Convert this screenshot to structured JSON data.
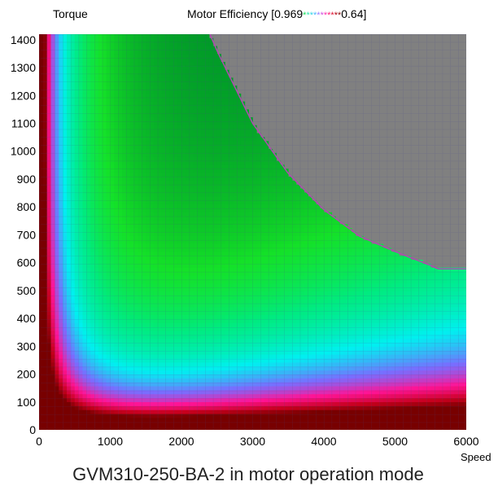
{
  "chart_data": {
    "type": "heatmap",
    "title": "Motor Efficiency",
    "title_prefix": "Motor Efficiency [0.969",
    "title_suffix": "0.64]",
    "legend_stars_left": "*****",
    "legend_stars_right": "******",
    "legend_star_colors": [
      "#21e05c",
      "#2ee6b0",
      "#33d6e6",
      "#4cb8ff",
      "#9c7cff",
      "#d14fe0",
      "#ff2fb0",
      "#ff1a72",
      "#e0102f",
      "#b3000f",
      "#8a0a0a"
    ],
    "ylabel": "Torque",
    "xlabel": "Speed",
    "caption": "GVM310-250-BA-2 in motor operation mode",
    "xlim": [
      0,
      6000
    ],
    "ylim": [
      0,
      1420
    ],
    "x_ticks": [
      "0",
      "1000",
      "2000",
      "3000",
      "4000",
      "5000",
      "6000"
    ],
    "y_ticks": [
      "0",
      "100",
      "200",
      "300",
      "400",
      "500",
      "600",
      "700",
      "800",
      "900",
      "1000",
      "1100",
      "1200",
      "1300",
      "1400"
    ],
    "colorbar_range": [
      0.64,
      0.969
    ],
    "grid": true,
    "region_outside_envelope": "#808080",
    "operating_limit_curve": {
      "speed": [
        2400,
        2500,
        3000,
        3500,
        4000,
        4500,
        5000,
        5500,
        5600,
        6000
      ],
      "torque": [
        1420,
        1360,
        1100,
        920,
        790,
        695,
        640,
        590,
        578,
        578
      ]
    },
    "efficiency_model_points": {
      "peak_region": {
        "speed": [
          2500,
          5000
        ],
        "torque": [
          300,
          700
        ],
        "efficiency": 0.969
      },
      "low_torque_band": {
        "torque_below": 50,
        "efficiency": 0.64
      },
      "low_speed_band": {
        "speed_below": 300,
        "efficiency": 0.64
      }
    }
  }
}
